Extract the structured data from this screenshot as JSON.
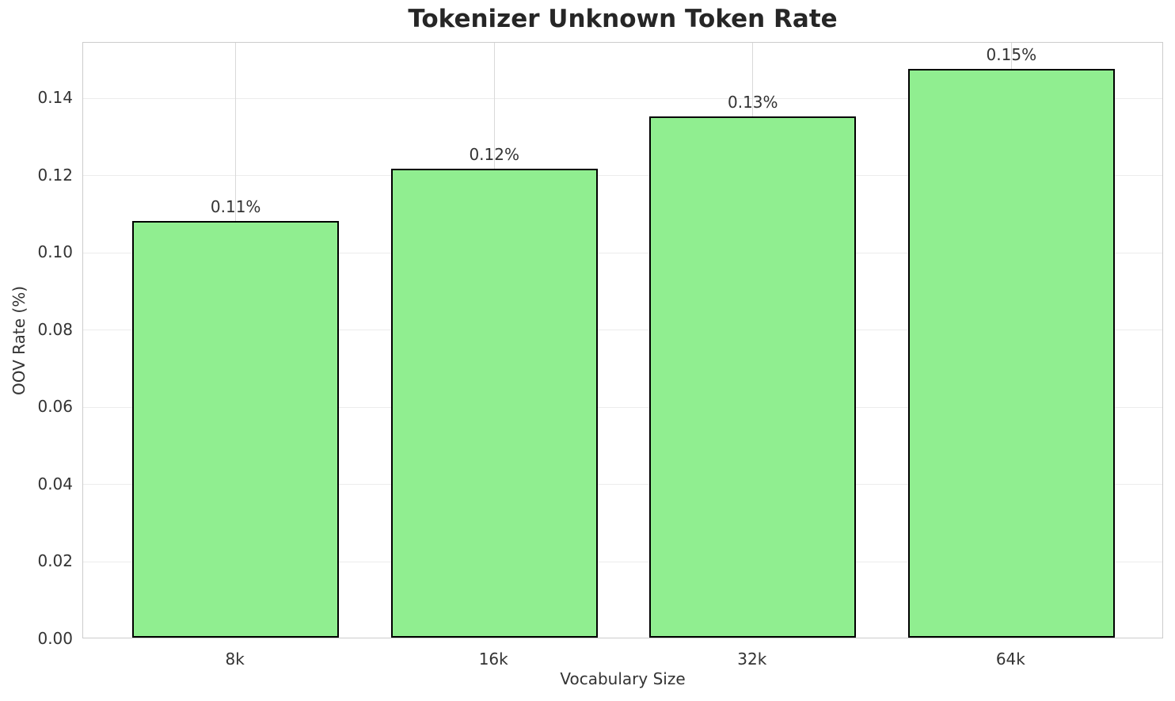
{
  "chart_data": {
    "type": "bar",
    "title": "Tokenizer Unknown Token Rate",
    "xlabel": "Vocabulary Size",
    "ylabel": "OOV Rate (%)",
    "categories": [
      "8k",
      "16k",
      "32k",
      "64k"
    ],
    "values": [
      0.1078,
      0.1213,
      0.1349,
      0.1472
    ],
    "bar_labels": [
      "0.11%",
      "0.12%",
      "0.13%",
      "0.15%"
    ],
    "yticks": [
      {
        "value": 0.0,
        "label": "0.00"
      },
      {
        "value": 0.02,
        "label": "0.02"
      },
      {
        "value": 0.04,
        "label": "0.04"
      },
      {
        "value": 0.06,
        "label": "0.06"
      },
      {
        "value": 0.08,
        "label": "0.08"
      },
      {
        "value": 0.1,
        "label": "0.10"
      },
      {
        "value": 0.12,
        "label": "0.12"
      },
      {
        "value": 0.14,
        "label": "0.14"
      }
    ],
    "ylim": [
      0,
      0.15435
    ],
    "xlim": [
      -0.59,
      3.59
    ],
    "bar_width_fraction": 0.8,
    "grid": true,
    "legend": false,
    "colors": {
      "bar_fill": "#90EE90",
      "bar_edge": "#000000",
      "grid_horizontal": "#ececec",
      "grid_vertical": "#d9d9d9",
      "spine": "#cccccc",
      "title_text": "#262626",
      "tick_text": "#333333",
      "background": "#ffffff"
    }
  }
}
